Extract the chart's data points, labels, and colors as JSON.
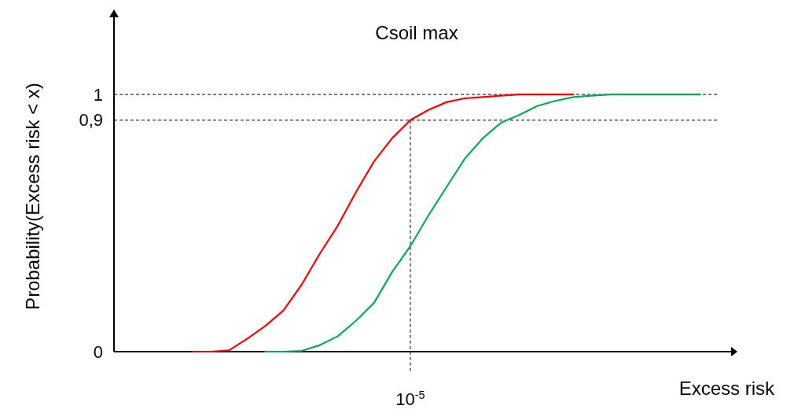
{
  "chart_data": {
    "type": "line",
    "title": "Csoil max",
    "xlabel": "Excess risk",
    "ylabel": "Probability(Excess risk < x)",
    "categories": [
      null,
      null,
      null,
      null,
      null,
      null,
      null,
      null,
      null,
      null,
      null,
      null,
      "10$^{-5}$",
      null,
      null,
      null,
      null,
      null,
      null,
      null,
      null,
      null,
      null,
      null,
      null,
      null,
      null,
      null,
      null
    ],
    "series": [
      {
        "color": "#ff0000",
        "values": [
          0,
          0,
          0.005,
          0.05,
          0.1,
          0.16,
          0.26,
          0.38,
          0.49,
          0.62,
          0.74,
          0.83,
          0.9,
          0.94,
          0.97,
          0.985,
          0.99,
          0.995,
          1,
          1,
          1,
          1,
          null,
          null,
          null,
          null,
          null,
          null,
          null
        ]
      },
      {
        "color": "#00b050",
        "values": [
          null,
          null,
          null,
          null,
          0,
          0,
          0.003,
          0.025,
          0.06,
          0.12,
          0.19,
          0.31,
          0.41,
          0.53,
          0.64,
          0.75,
          0.83,
          0.89,
          0.92,
          0.955,
          0.975,
          0.99,
          0.995,
          1,
          1,
          1,
          1,
          1,
          1
        ]
      }
    ],
    "ylim": [
      0,
      1.3
    ],
    "yticks": [
      0,
      {
        "value": 0.9,
        "label": "0,9"
      },
      1
    ],
    "ref_lines": [
      {
        "axis": "y",
        "value": 1,
        "line_style": "dashed",
        "color": "#000000"
      },
      {
        "axis": "y",
        "value": 0.9,
        "line_style": "dashed",
        "color": "#000000"
      },
      {
        "axis": "x",
        "value": "10$^{-5}$",
        "line_style": "dashed",
        "color": "#000000"
      }
    ],
    "grid": false,
    "marker": "none",
    "line_style": "solid"
  }
}
